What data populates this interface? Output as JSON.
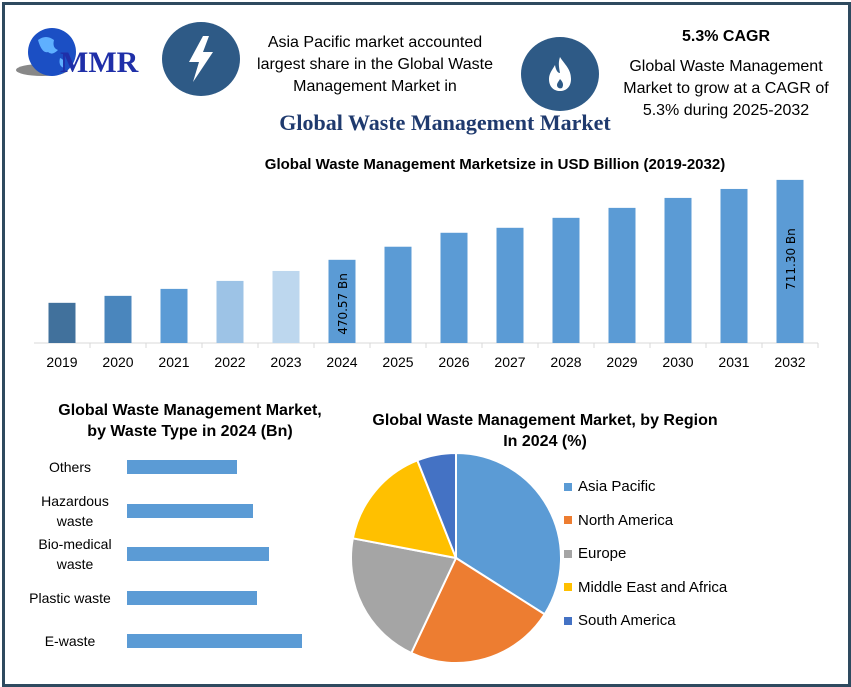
{
  "header": {
    "logo_text": "MMR",
    "highlight_left": "Asia Pacific market accounted largest share in the Global Waste Management Market in",
    "highlight_right_title": "5.3% CAGR",
    "highlight_right": "Global Waste Management Market to grow at a CAGR of 5.3% during 2025-2032",
    "icons": [
      "lightning-icon",
      "flame-icon"
    ],
    "icon_circle_color": "#2e5a86",
    "title": "Global Waste Management Market"
  },
  "chart_data": [
    {
      "type": "bar",
      "title": "Global Waste Management Marketsize in USD Billion (2019-2032)",
      "categories": [
        "2019",
        "2020",
        "2021",
        "2022",
        "2023",
        "2024",
        "2025",
        "2026",
        "2027",
        "2028",
        "2029",
        "2030",
        "2031",
        "2032"
      ],
      "values": [
        341,
        362,
        383,
        407,
        437,
        470.57,
        510,
        552,
        567,
        597,
        627,
        657,
        684,
        711.3
      ],
      "data_labels": {
        "2024": "470.57 Bn",
        "2032": "711.30 Bn"
      },
      "colors": [
        "#41719c",
        "#4a86bd",
        "#5b9bd5",
        "#9dc3e6",
        "#bdd7ee",
        "#5b9bd5",
        "#5b9bd5",
        "#5b9bd5",
        "#5b9bd5",
        "#5b9bd5",
        "#5b9bd5",
        "#5b9bd5",
        "#5b9bd5",
        "#5b9bd5"
      ],
      "ylim": [
        220,
        720
      ],
      "grid": false
    },
    {
      "type": "bar",
      "orientation": "horizontal",
      "title": "Global Waste Management Market, by Waste Type in 2024 (Bn)",
      "categories": [
        "Others",
        "Hazardous waste",
        "Bio-medical waste",
        "Plastic waste",
        "E-waste"
      ],
      "values": [
        0.63,
        0.72,
        0.81,
        0.74,
        1.0
      ],
      "color": "#5b9bd5"
    },
    {
      "type": "pie",
      "title": "Global Waste Management Market, by Region In 2024 (%)",
      "categories": [
        "Asia Pacific",
        "North America",
        "Europe",
        "Middle East and Africa",
        "South America"
      ],
      "values": [
        34,
        23,
        21,
        16,
        6
      ],
      "colors": [
        "#5b9bd5",
        "#ed7d31",
        "#a5a5a5",
        "#ffc000",
        "#4472c4"
      ],
      "legend": "right"
    }
  ]
}
